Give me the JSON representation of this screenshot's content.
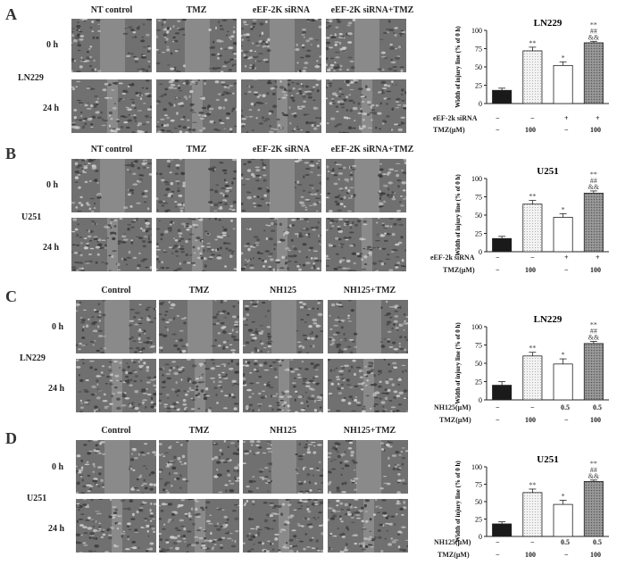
{
  "panels": [
    {
      "letter": "A",
      "columns": [
        "NT control",
        "TMZ",
        "eEF-2K siRNA",
        "eEF-2K siRNA+TMZ"
      ],
      "rows": [
        "0 h",
        "24 h"
      ],
      "cell_line": "LN229",
      "condition_rows": [
        {
          "label": "eEF-2k siRNA",
          "values": [
            "−",
            "−",
            "+",
            "+"
          ]
        },
        {
          "label": "TMZ(μM)",
          "values": [
            "−",
            "100",
            "−",
            "100"
          ]
        }
      ]
    },
    {
      "letter": "B",
      "columns": [
        "NT control",
        "TMZ",
        "eEF-2K siRNA",
        "eEF-2K siRNA+TMZ"
      ],
      "rows": [
        "0 h",
        "24 h"
      ],
      "cell_line": "U251",
      "condition_rows": [
        {
          "label": "eEF-2k siRNA",
          "values": [
            "−",
            "−",
            "+",
            "+"
          ]
        },
        {
          "label": "TMZ(μM)",
          "values": [
            "−",
            "100",
            "−",
            "100"
          ]
        }
      ]
    },
    {
      "letter": "C",
      "columns": [
        "Control",
        "TMZ",
        "NH125",
        "NH125+TMZ"
      ],
      "rows": [
        "0 h",
        "24 h"
      ],
      "cell_line": "LN229",
      "condition_rows": [
        {
          "label": "NH125(μM)",
          "values": [
            "−",
            "−",
            "0.5",
            "0.5"
          ]
        },
        {
          "label": "TMZ(μM)",
          "values": [
            "−",
            "100",
            "−",
            "100"
          ]
        }
      ]
    },
    {
      "letter": "D",
      "columns": [
        "Control",
        "TMZ",
        "NH125",
        "NH125+TMZ"
      ],
      "rows": [
        "0 h",
        "24 h"
      ],
      "cell_line": "U251",
      "condition_rows": [
        {
          "label": "NH125(μM)",
          "values": [
            "−",
            "−",
            "0.5",
            "0.5"
          ]
        },
        {
          "label": "TMZ(μM)",
          "values": [
            "−",
            "100",
            "−",
            "100"
          ]
        }
      ]
    }
  ],
  "chart_data": [
    {
      "type": "bar",
      "title": "LN229",
      "ylabel": "Width of injury line  (% of 0 h)",
      "ylim": [
        0,
        100
      ],
      "yticks": [
        "0",
        "25",
        "50",
        "75",
        "100"
      ],
      "values": [
        18,
        72,
        52,
        83
      ],
      "errors": [
        3,
        5,
        5,
        2
      ],
      "annotations": [
        "",
        "**",
        "*",
        "**\n##\n&&"
      ],
      "bar_fills": [
        "#1a1a1a",
        "#e2e2e2",
        "#ffffff",
        "#8a8a8a"
      ]
    },
    {
      "type": "bar",
      "title": "U251",
      "ylabel": "Width of injury line  (% of 0 h)",
      "ylim": [
        0,
        100
      ],
      "yticks": [
        "0",
        "25",
        "50",
        "75",
        "100"
      ],
      "values": [
        18,
        65,
        47,
        80
      ],
      "errors": [
        3,
        5,
        5,
        3
      ],
      "annotations": [
        "",
        "**",
        "*",
        "**\n##\n&&"
      ],
      "bar_fills": [
        "#1a1a1a",
        "#e2e2e2",
        "#ffffff",
        "#8a8a8a"
      ]
    },
    {
      "type": "bar",
      "title": "LN229",
      "ylabel": "Width of injury line  (% of 0 h)",
      "ylim": [
        0,
        100
      ],
      "yticks": [
        "0",
        "25",
        "50",
        "75",
        "100"
      ],
      "values": [
        20,
        60,
        49,
        77
      ],
      "errors": [
        5,
        5,
        7,
        3
      ],
      "annotations": [
        "",
        "**",
        "*",
        "**\n##\n&&"
      ],
      "bar_fills": [
        "#1a1a1a",
        "#e2e2e2",
        "#ffffff",
        "#8a8a8a"
      ]
    },
    {
      "type": "bar",
      "title": "U251",
      "ylabel": "Width of injury line  (% of 0 h)",
      "ylim": [
        0,
        100
      ],
      "yticks": [
        "0",
        "25",
        "50",
        "75",
        "100"
      ],
      "values": [
        18,
        63,
        46,
        79
      ],
      "errors": [
        3,
        5,
        6,
        2
      ],
      "annotations": [
        "",
        "**",
        "*",
        "**\n##\n&&"
      ],
      "bar_fills": [
        "#1a1a1a",
        "#e2e2e2",
        "#ffffff",
        "#8a8a8a"
      ]
    }
  ]
}
